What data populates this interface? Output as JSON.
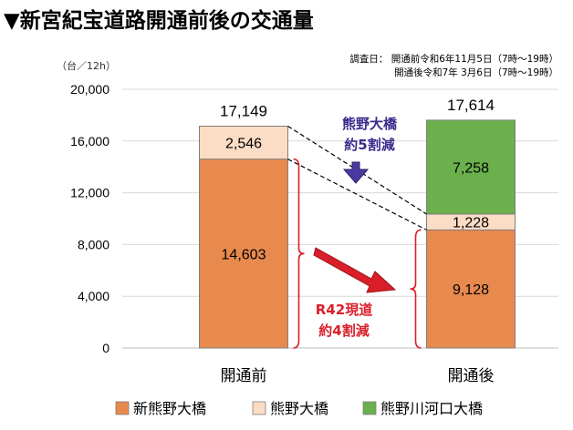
{
  "chart_data": {
    "type": "bar",
    "stacked": true,
    "title": "▼新宮紀宝道路開通前後の交通量",
    "unit_label": "（台／12h）",
    "survey_notes": [
      "調査日： 開通前令和6年11月5日（7時～19時）",
      "開通後令和7年 3月6日（7時～19時）"
    ],
    "categories": [
      "開通前",
      "開通後"
    ],
    "ylim": [
      0,
      20000
    ],
    "yticks": [
      "0",
      "4,000",
      "8,000",
      "12,000",
      "16,000",
      "20,000"
    ],
    "grid": true,
    "legend_position": "bottom",
    "series": [
      {
        "name": "新熊野大橋",
        "values": [
          14603,
          9128
        ],
        "labels": [
          "14,603",
          "9,128"
        ],
        "color": "#e8894d"
      },
      {
        "name": "熊野大橋",
        "values": [
          2546,
          1228
        ],
        "labels": [
          "2,546",
          "1,228"
        ],
        "color": "#fbdcc4"
      },
      {
        "name": "熊野川河口大橋",
        "values": [
          0,
          7258
        ],
        "labels": [
          "",
          "7,258"
        ],
        "color": "#6ab04c"
      }
    ],
    "totals": [
      "17,149",
      "17,614"
    ],
    "annotations": {
      "purple": [
        "熊野大橋",
        "約5割減"
      ],
      "red": [
        "R42現道",
        "約4割減"
      ]
    },
    "colors": {
      "purple": "#3b2a8c",
      "red": "#d91e2a",
      "border": "#7f7f7f"
    }
  }
}
